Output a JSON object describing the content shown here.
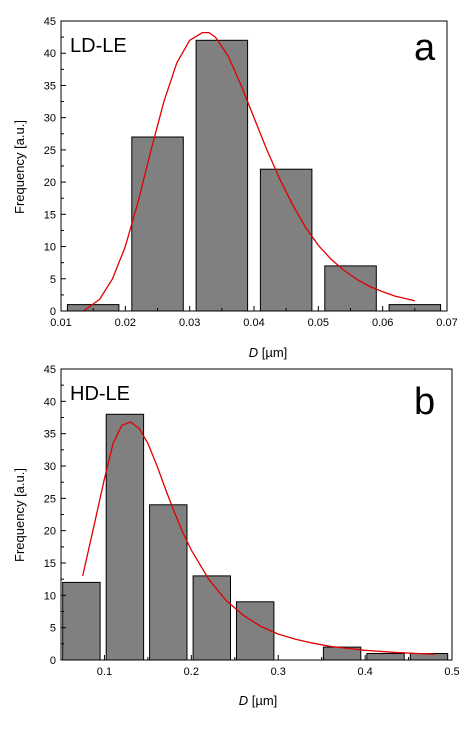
{
  "chart_data": [
    {
      "type": "bar",
      "panel_letter": "a",
      "tag": "LD-LE",
      "xlabel": {
        "italic": "D",
        "rest": " [µm]"
      },
      "ylabel": "Frequency [a.u.]",
      "xlim": [
        0.01,
        0.07
      ],
      "ylim": [
        0,
        45
      ],
      "xticks": [
        0.01,
        0.02,
        0.03,
        0.04,
        0.05,
        0.06,
        0.07
      ],
      "xtick_labels": [
        "0.01",
        "0.02",
        "0.03",
        "0.04",
        "0.05",
        "0.06",
        "0.07"
      ],
      "yticks": [
        0,
        5,
        10,
        15,
        20,
        25,
        30,
        35,
        40,
        45
      ],
      "ytick_labels": [
        "0",
        "5",
        "10",
        "15",
        "20",
        "25",
        "30",
        "35",
        "40",
        "45"
      ],
      "bar_color": "#808080",
      "bars": [
        {
          "x0": 0.011,
          "x1": 0.019,
          "value": 1
        },
        {
          "x0": 0.021,
          "x1": 0.029,
          "value": 27
        },
        {
          "x0": 0.031,
          "x1": 0.039,
          "value": 42
        },
        {
          "x0": 0.041,
          "x1": 0.049,
          "value": 22
        },
        {
          "x0": 0.051,
          "x1": 0.059,
          "value": 7
        },
        {
          "x0": 0.061,
          "x1": 0.069,
          "value": 1
        }
      ],
      "fit_curve": {
        "color": "#e00000",
        "x": [
          0.0135,
          0.016,
          0.018,
          0.02,
          0.022,
          0.024,
          0.026,
          0.028,
          0.03,
          0.032,
          0.033,
          0.034,
          0.036,
          0.038,
          0.04,
          0.042,
          0.044,
          0.046,
          0.048,
          0.05,
          0.052,
          0.054,
          0.056,
          0.058,
          0.06,
          0.062,
          0.065
        ],
        "y": [
          0.0,
          1.8,
          5.0,
          10.0,
          17.0,
          25.0,
          32.5,
          38.5,
          42.0,
          43.2,
          43.2,
          42.5,
          39.5,
          35.0,
          30.0,
          25.0,
          20.5,
          16.5,
          13.0,
          10.2,
          8.0,
          6.3,
          4.9,
          3.8,
          3.0,
          2.3,
          1.6
        ]
      }
    },
    {
      "type": "bar",
      "panel_letter": "b",
      "tag": "HD-LE",
      "xlabel": {
        "italic": "D",
        "rest": " [µm]"
      },
      "ylabel": "Frequency [a.u.]",
      "xlim": [
        0.05,
        0.5
      ],
      "ylim": [
        0,
        45
      ],
      "xticks": [
        0.1,
        0.2,
        0.3,
        0.4,
        0.5
      ],
      "xtick_labels": [
        "0.1",
        "0.2",
        "0.3",
        "0.4",
        "0.5"
      ],
      "yticks": [
        0,
        5,
        10,
        15,
        20,
        25,
        30,
        35,
        40,
        45
      ],
      "ytick_labels": [
        "0",
        "5",
        "10",
        "15",
        "20",
        "25",
        "30",
        "35",
        "40",
        "45"
      ],
      "bar_color": "#808080",
      "bars": [
        {
          "x0": 0.052,
          "x1": 0.095,
          "value": 12
        },
        {
          "x0": 0.102,
          "x1": 0.145,
          "value": 38
        },
        {
          "x0": 0.152,
          "x1": 0.195,
          "value": 24
        },
        {
          "x0": 0.202,
          "x1": 0.245,
          "value": 13
        },
        {
          "x0": 0.252,
          "x1": 0.295,
          "value": 9
        },
        {
          "x0": 0.352,
          "x1": 0.395,
          "value": 2
        },
        {
          "x0": 0.402,
          "x1": 0.445,
          "value": 1
        },
        {
          "x0": 0.452,
          "x1": 0.495,
          "value": 1
        }
      ],
      "fit_curve": {
        "color": "#e00000",
        "x": [
          0.075,
          0.09,
          0.1,
          0.11,
          0.12,
          0.13,
          0.14,
          0.15,
          0.16,
          0.17,
          0.18,
          0.19,
          0.2,
          0.22,
          0.24,
          0.26,
          0.28,
          0.3,
          0.32,
          0.34,
          0.36,
          0.38,
          0.4,
          0.43,
          0.46,
          0.48
        ],
        "y": [
          13.0,
          22.0,
          28.0,
          33.5,
          36.3,
          36.8,
          35.8,
          33.5,
          30.2,
          26.5,
          23.0,
          19.8,
          17.0,
          12.5,
          9.2,
          6.9,
          5.2,
          4.0,
          3.2,
          2.6,
          2.1,
          1.8,
          1.5,
          1.2,
          1.0,
          0.9
        ]
      }
    }
  ]
}
